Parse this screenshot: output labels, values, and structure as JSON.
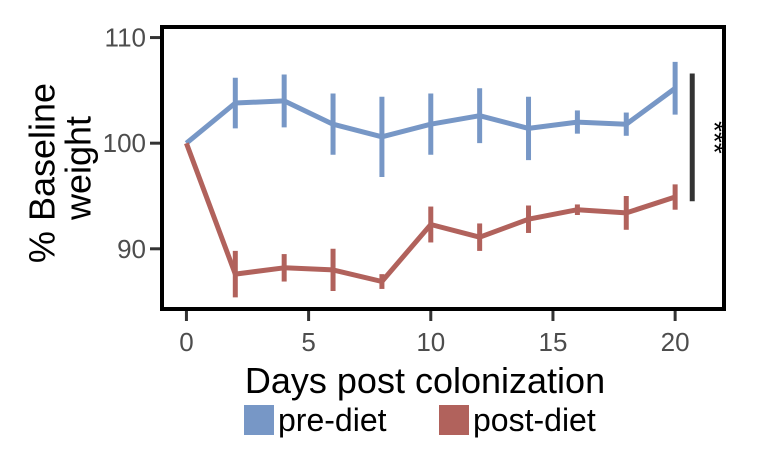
{
  "chart_data": {
    "type": "line",
    "xlabel": "Days post colonization",
    "ylabel_lines": [
      "% Baseline",
      "weight"
    ],
    "xlim": [
      -1,
      22
    ],
    "ylim": [
      84.3,
      111
    ],
    "xticks": [
      0,
      5,
      10,
      15,
      20
    ],
    "yticks": [
      90,
      100,
      110
    ],
    "grid": false,
    "legend_position": "bottom",
    "series": [
      {
        "name": "pre-diet",
        "color": "#7797c6",
        "x": [
          0,
          2,
          4,
          6,
          8,
          10,
          12,
          14,
          16,
          18,
          20
        ],
        "y": [
          100.0,
          103.8,
          104.0,
          101.8,
          100.6,
          101.8,
          102.6,
          101.4,
          102.0,
          101.8,
          105.2
        ],
        "err": [
          0.0,
          2.4,
          2.5,
          2.9,
          3.8,
          2.9,
          2.6,
          3.0,
          1.1,
          1.1,
          2.5
        ]
      },
      {
        "name": "post-diet",
        "color": "#b1625c",
        "x": [
          0,
          2,
          4,
          6,
          8,
          10,
          12,
          14,
          16,
          18,
          20
        ],
        "y": [
          100.0,
          87.6,
          88.2,
          88.0,
          86.9,
          92.3,
          91.1,
          92.8,
          93.7,
          93.4,
          94.9
        ],
        "err": [
          0.0,
          2.2,
          1.3,
          2.0,
          0.7,
          1.7,
          1.3,
          1.3,
          0.5,
          1.6,
          1.2
        ]
      }
    ],
    "annotation": {
      "text": "***",
      "y_range": [
        94.5,
        106.6
      ]
    }
  }
}
